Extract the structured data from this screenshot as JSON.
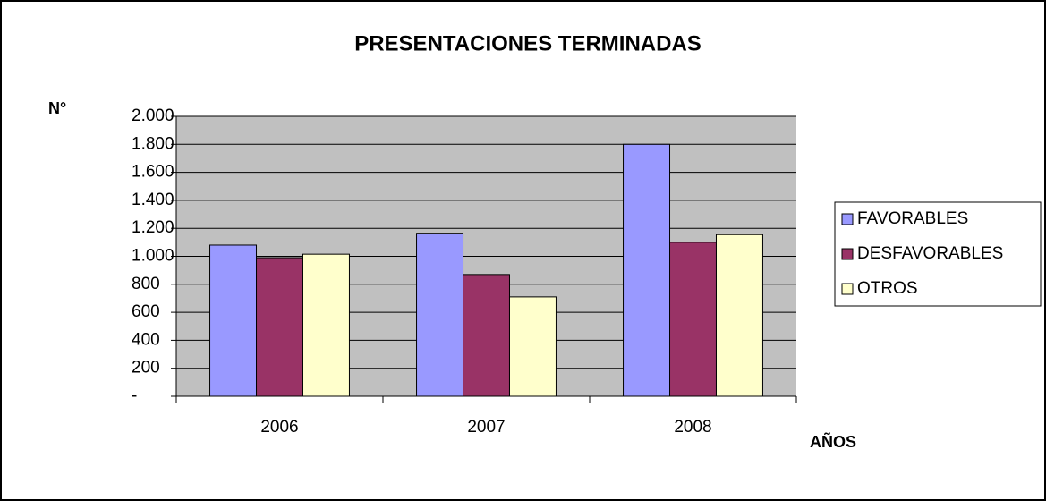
{
  "chart_data": {
    "type": "bar",
    "title": "PRESENTACIONES TERMINADAS",
    "y_label": "N°",
    "x_label": "AÑOS",
    "categories": [
      "2006",
      "2007",
      "2008"
    ],
    "series": [
      {
        "name": "FAVORABLES",
        "color": "#9999ff",
        "values": [
          1080,
          1165,
          1800
        ]
      },
      {
        "name": "DESFAVORABLES",
        "color": "#993366",
        "values": [
          990,
          870,
          1100
        ]
      },
      {
        "name": "OTROS",
        "color": "#ffffcc",
        "values": [
          1015,
          710,
          1155
        ]
      }
    ],
    "ylim": [
      0,
      2000
    ],
    "yticks": [
      {
        "value": 0,
        "label": "-"
      },
      200,
      400,
      600,
      800,
      {
        "value": 1000,
        "label": "1.000"
      },
      {
        "value": 1200,
        "label": "1.200"
      },
      {
        "value": 1400,
        "label": "1.400"
      },
      {
        "value": 1600,
        "label": "1.600"
      },
      {
        "value": 1800,
        "label": "1.800"
      },
      {
        "value": 2000,
        "label": "2.000"
      }
    ],
    "grid": true,
    "legend": "right"
  }
}
